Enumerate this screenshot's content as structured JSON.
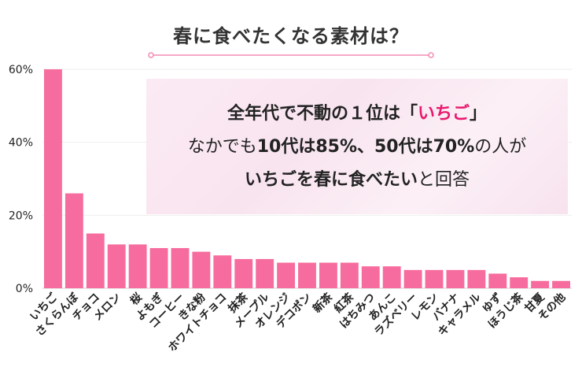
{
  "chart_data": {
    "type": "bar",
    "title": "春に食べたくなる素材は？",
    "categories": [
      "いちご",
      "さくらんぼ",
      "チョコ",
      "メロン",
      "桜",
      "よもぎ",
      "コーヒー",
      "きな粉",
      "ホワイトチョコ",
      "抹茶",
      "メープル",
      "オレンジ",
      "デコポン",
      "新茶",
      "紅茶",
      "はちみつ",
      "あんこ",
      "ラズベリー",
      "レモン",
      "バナナ",
      "キャラメル",
      "ゆず",
      "ほうじ茶",
      "甘夏",
      "その他"
    ],
    "values": [
      60,
      26,
      15,
      12,
      12,
      11,
      11,
      10,
      9,
      8,
      8,
      7,
      7,
      7,
      7,
      6,
      6,
      5,
      5,
      5,
      5,
      4,
      3,
      2,
      2
    ],
    "ylim": [
      0,
      60
    ],
    "yticks": [
      0,
      20,
      40,
      60
    ],
    "ytick_labels": [
      "0%",
      "20%",
      "40%",
      "60%"
    ],
    "grid": true,
    "bar_color": "#f76c9e"
  },
  "callout": {
    "line1_a": "全年代で不動の１位は「",
    "line1_b": "いちご",
    "line1_c": "」",
    "line2_a": "なかでも",
    "line2_b": "10代は85%、50代は70%",
    "line2_c": "の人が",
    "line3_a": "いちごを春に食べたい",
    "line3_b": "と回答"
  },
  "colors": {
    "accent": "#e8196e",
    "bar": "#f76c9e",
    "underline": "#f28bb3"
  }
}
